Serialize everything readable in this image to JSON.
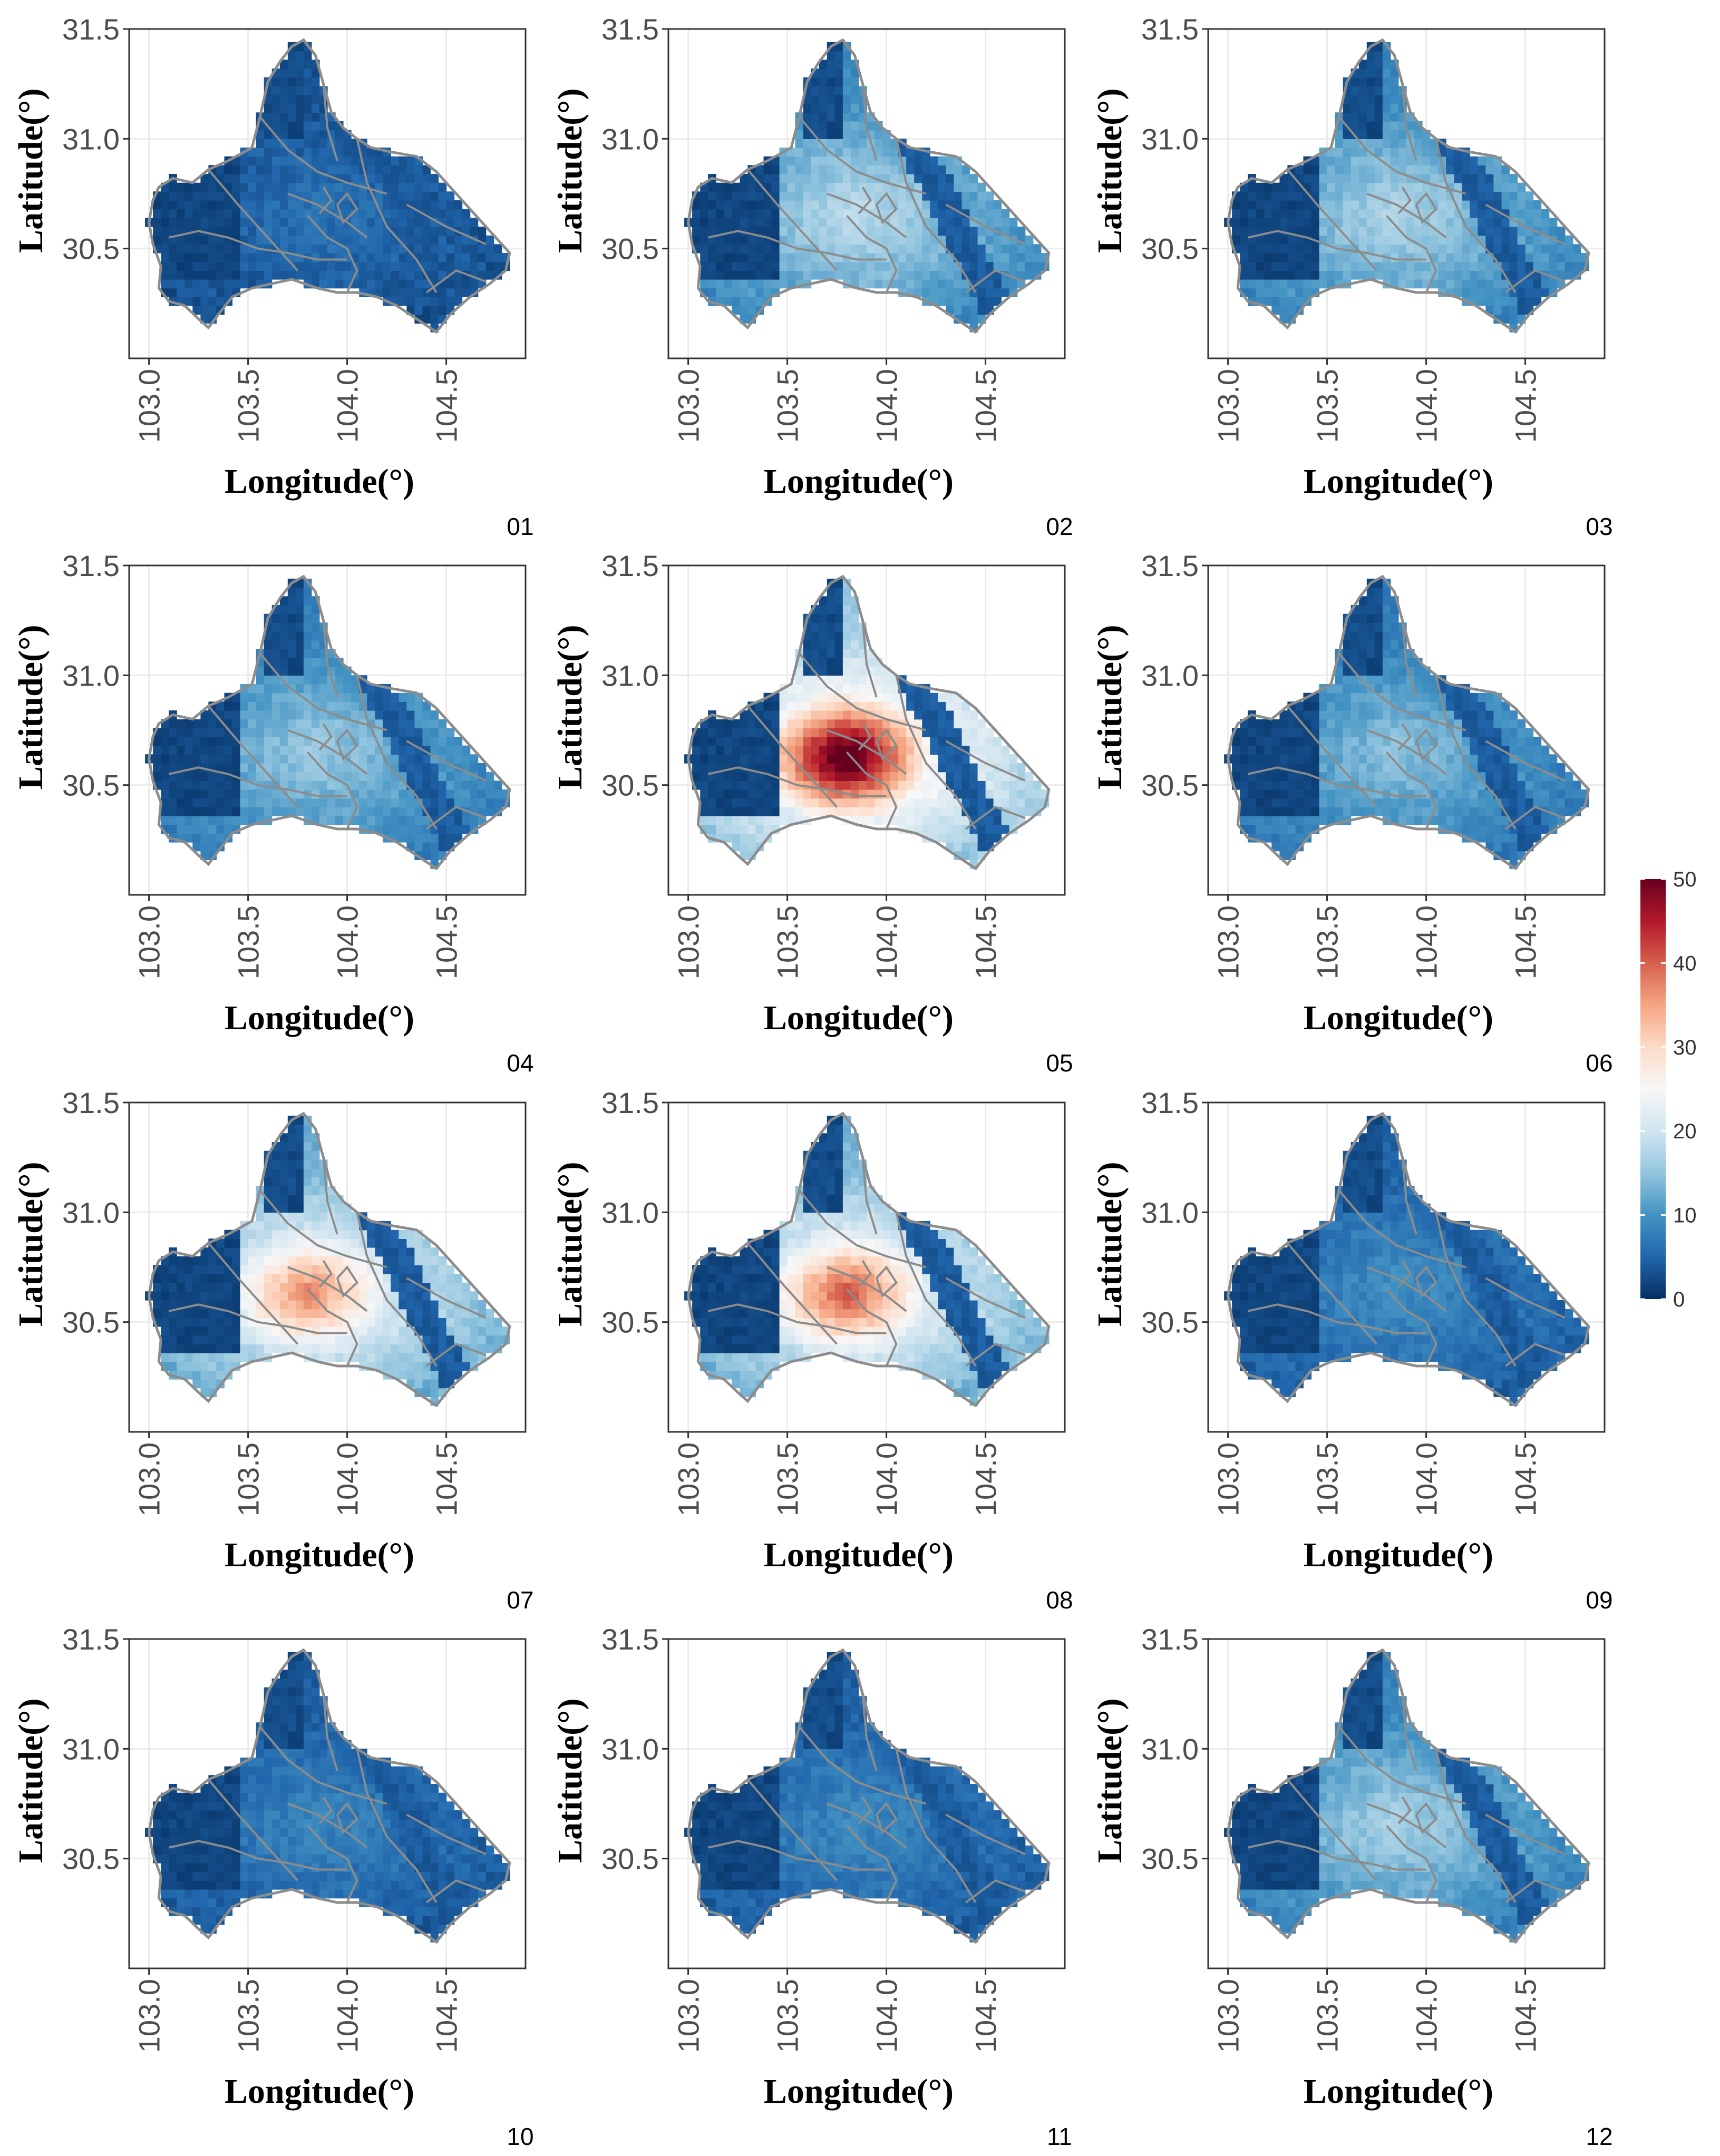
{
  "figure": {
    "type": "map-panels",
    "description_of_panels": "12 monthly maps",
    "x_axis_label": "Longitude(°)",
    "y_axis_label": "Latitude(°)",
    "x_ticks": [
      "103.0",
      "103.5",
      "104.0",
      "104.5"
    ],
    "x_tick_values": [
      103.0,
      103.5,
      104.0,
      104.5
    ],
    "y_ticks": [
      "31.5",
      "31.0",
      "30.5"
    ],
    "y_tick_values": [
      31.5,
      31.0,
      30.5
    ],
    "x_range": [
      102.9,
      104.9
    ],
    "y_range": [
      30.0,
      31.5
    ],
    "panels": [
      {
        "label": "01",
        "intensity": 0.12,
        "hotspot": 0.0
      },
      {
        "label": "02",
        "intensity": 0.35,
        "hotspot": 0.0
      },
      {
        "label": "03",
        "intensity": 0.33,
        "hotspot": 0.0
      },
      {
        "label": "04",
        "intensity": 0.3,
        "hotspot": 0.0
      },
      {
        "label": "05",
        "intensity": 0.62,
        "hotspot": 0.85
      },
      {
        "label": "06",
        "intensity": 0.28,
        "hotspot": 0.0
      },
      {
        "label": "07",
        "intensity": 0.5,
        "hotspot": 0.45
      },
      {
        "label": "08",
        "intensity": 0.52,
        "hotspot": 0.55
      },
      {
        "label": "09",
        "intensity": 0.18,
        "hotspot": 0.0
      },
      {
        "label": "10",
        "intensity": 0.16,
        "hotspot": 0.0
      },
      {
        "label": "11",
        "intensity": 0.17,
        "hotspot": 0.0
      },
      {
        "label": "12",
        "intensity": 0.32,
        "hotspot": 0.0
      }
    ]
  },
  "legend": {
    "ticks": [
      "50",
      "40",
      "30",
      "20",
      "10",
      "0"
    ],
    "tick_values": [
      50,
      40,
      30,
      20,
      10,
      0
    ],
    "min": 0,
    "max": 50,
    "colors": [
      "#053061",
      "#2166ac",
      "#4393c3",
      "#92c5de",
      "#d1e5f0",
      "#f7f7f7",
      "#fddbc7",
      "#f4a582",
      "#d6604d",
      "#b2182b",
      "#67001f"
    ]
  }
}
